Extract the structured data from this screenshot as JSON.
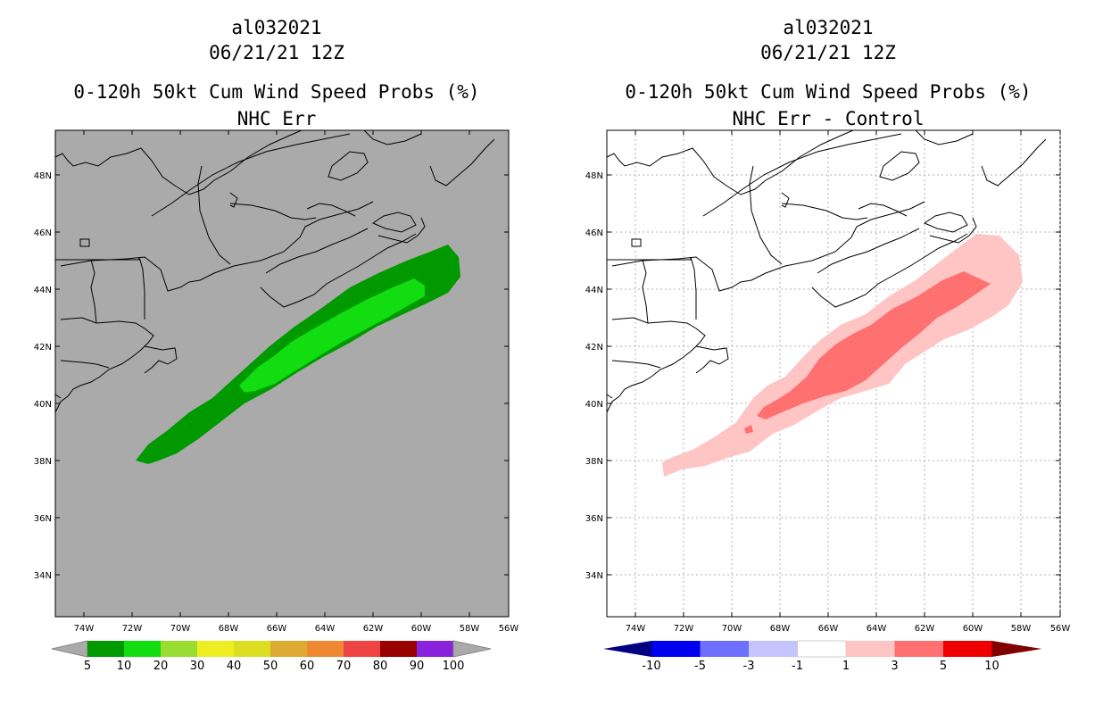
{
  "colors": {
    "land_bg_left": "#aaaaaa",
    "prob_5": "#009900",
    "prob_10": "#11dd11",
    "diff_1": "#ffc4c4",
    "diff_3": "#ff7070"
  },
  "left_panel": {
    "storm_id": "al032021",
    "datetime": "06/21/21 12Z",
    "title": "0-120h 50kt Cum Wind Speed Probs (%)",
    "subtitle": "NHC Err",
    "lat_labels": [
      "48N",
      "46N",
      "44N",
      "42N",
      "40N",
      "38N",
      "36N",
      "34N"
    ],
    "lon_labels": [
      "74W",
      "72W",
      "70W",
      "68W",
      "66W",
      "64W",
      "62W",
      "60W",
      "58W",
      "56W"
    ],
    "colorbar_labels": [
      "5",
      "10",
      "20",
      "30",
      "40",
      "50",
      "60",
      "70",
      "80",
      "90",
      "100"
    ],
    "colorbar_colors": [
      "#009900",
      "#11dd11",
      "#99dd33",
      "#eeee22",
      "#dddd22",
      "#ddaa33",
      "#ee8833",
      "#ee4444",
      "#990000",
      "#8822dd"
    ]
  },
  "right_panel": {
    "storm_id": "al032021",
    "datetime": "06/21/21 12Z",
    "title": "0-120h 50kt Cum Wind Speed Probs (%)",
    "subtitle": "NHC Err - Control",
    "lat_labels": [
      "48N",
      "46N",
      "44N",
      "42N",
      "40N",
      "38N",
      "36N",
      "34N"
    ],
    "lon_labels": [
      "74W",
      "72W",
      "70W",
      "68W",
      "66W",
      "64W",
      "62W",
      "60W",
      "58W",
      "56W"
    ],
    "colorbar_labels": [
      "-10",
      "-5",
      "-3",
      "-1",
      "1",
      "3",
      "5",
      "10"
    ],
    "colorbar_colors": [
      "#0000ee",
      "#6e6eff",
      "#c4c4ff",
      "#ffffff",
      "#ffc4c4",
      "#ff7070",
      "#ee0000"
    ]
  }
}
